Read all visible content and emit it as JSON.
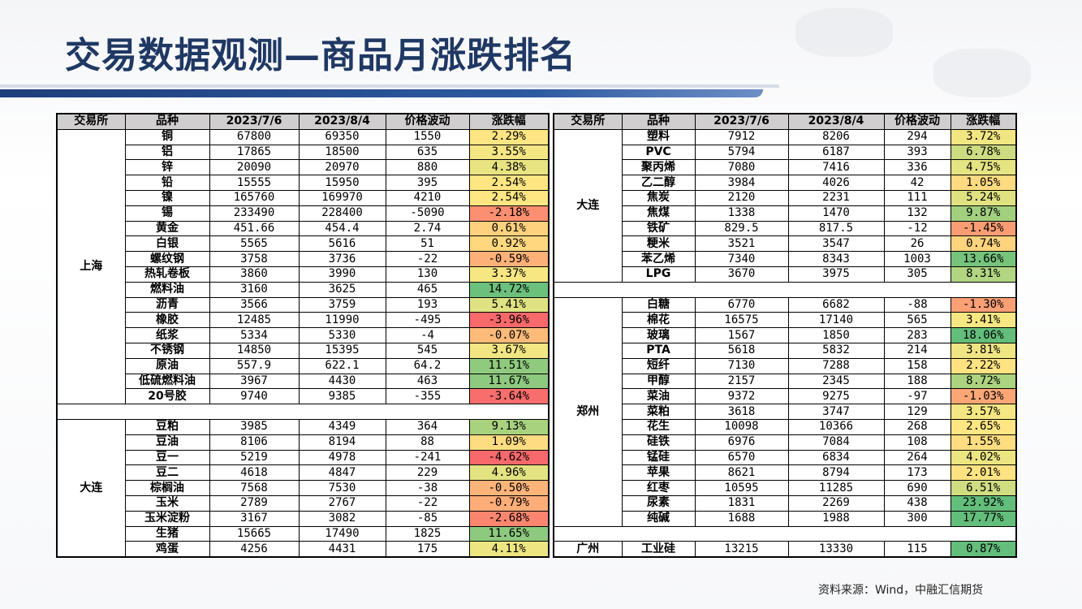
{
  "title": "交易数据观测—商品月涨跌排名",
  "headers": [
    "交易所",
    "品种",
    "2023/7/6",
    "2023/8/4",
    "价格波动",
    "涨跌幅"
  ],
  "source": "资料来源：Wind，中融汇信期货",
  "colors": {
    "green": "#63be7b",
    "green_light": "#b5d77f",
    "yellow_green": "#d8e081",
    "yellow": "#ffeb84",
    "orange": "#fdbf7a",
    "red": "#f8696b",
    "header_bg": "#d0cece",
    "title": "#1f3864"
  },
  "left_table": [
    {
      "exchange": "上海",
      "rows": [
        {
          "item": "铜",
          "p1": "67800",
          "p2": "69350",
          "chg": "1550",
          "pct": "2.29%",
          "color": "#ffe583"
        },
        {
          "item": "铝",
          "p1": "17865",
          "p2": "18500",
          "chg": "635",
          "pct": "3.55%",
          "color": "#f4e683"
        },
        {
          "item": "锌",
          "p1": "20090",
          "p2": "20970",
          "chg": "880",
          "pct": "4.38%",
          "color": "#e9e482"
        },
        {
          "item": "铅",
          "p1": "15555",
          "p2": "15950",
          "chg": "395",
          "pct": "2.54%",
          "color": "#ffe683"
        },
        {
          "item": "镍",
          "p1": "165760",
          "p2": "169970",
          "chg": "4210",
          "pct": "2.54%",
          "color": "#ffe683"
        },
        {
          "item": "锡",
          "p1": "233490",
          "p2": "228400",
          "chg": "-5090",
          "pct": "-2.18%",
          "color": "#fb8f71"
        },
        {
          "item": "黄金",
          "p1": "451.66",
          "p2": "454.4",
          "chg": "2.74",
          "pct": "0.61%",
          "color": "#fed17e"
        },
        {
          "item": "白银",
          "p1": "5565",
          "p2": "5616",
          "chg": "51",
          "pct": "0.92%",
          "color": "#fed77f"
        },
        {
          "item": "螺纹钢",
          "p1": "3758",
          "p2": "3736",
          "chg": "-22",
          "pct": "-0.59%",
          "color": "#fdb178"
        },
        {
          "item": "热轧卷板",
          "p1": "3860",
          "p2": "3990",
          "chg": "130",
          "pct": "3.37%",
          "color": "#f7e783"
        },
        {
          "item": "燃料油",
          "p1": "3160",
          "p2": "3625",
          "chg": "465",
          "pct": "14.72%",
          "color": "#6bc07c"
        },
        {
          "item": "沥青",
          "p1": "3566",
          "p2": "3759",
          "chg": "193",
          "pct": "5.41%",
          "color": "#dfe282"
        },
        {
          "item": "橡胶",
          "p1": "12485",
          "p2": "11990",
          "chg": "-495",
          "pct": "-3.96%",
          "color": "#f8696b"
        },
        {
          "item": "纸浆",
          "p1": "5334",
          "p2": "5330",
          "chg": "-4",
          "pct": "-0.07%",
          "color": "#fdbb7a"
        },
        {
          "item": "不锈钢",
          "p1": "14850",
          "p2": "15395",
          "chg": "545",
          "pct": "3.67%",
          "color": "#f2e683"
        },
        {
          "item": "原油",
          "p1": "557.9",
          "p2": "622.1",
          "chg": "64.2",
          "pct": "11.51%",
          "color": "#8fca7e"
        },
        {
          "item": "低硫燃料油",
          "p1": "3967",
          "p2": "4430",
          "chg": "463",
          "pct": "11.67%",
          "color": "#8dc97e"
        },
        {
          "item": "20号胶",
          "p1": "9740",
          "p2": "9385",
          "chg": "-355",
          "pct": "-3.64%",
          "color": "#f86e6c"
        }
      ]
    },
    {
      "exchange": "大连",
      "rows": [
        {
          "item": "豆粕",
          "p1": "3985",
          "p2": "4349",
          "chg": "364",
          "pct": "9.13%",
          "color": "#a9d27f"
        },
        {
          "item": "豆油",
          "p1": "8106",
          "p2": "8194",
          "chg": "88",
          "pct": "1.09%",
          "color": "#fedc81"
        },
        {
          "item": "豆一",
          "p1": "5219",
          "p2": "4978",
          "chg": "-241",
          "pct": "-4.62%",
          "color": "#f8696b"
        },
        {
          "item": "豆二",
          "p1": "4618",
          "p2": "4847",
          "chg": "229",
          "pct": "4.96%",
          "color": "#e3e382"
        },
        {
          "item": "棕榈油",
          "p1": "7568",
          "p2": "7530",
          "chg": "-38",
          "pct": "-0.50%",
          "color": "#fdb479"
        },
        {
          "item": "玉米",
          "p1": "2789",
          "p2": "2767",
          "chg": "-22",
          "pct": "-0.79%",
          "color": "#fdad78"
        },
        {
          "item": "玉米淀粉",
          "p1": "3167",
          "p2": "3082",
          "chg": "-85",
          "pct": "-2.68%",
          "color": "#fa8670"
        },
        {
          "item": "生猪",
          "p1": "15665",
          "p2": "17490",
          "chg": "1825",
          "pct": "11.65%",
          "color": "#8dc97e"
        },
        {
          "item": "鸡蛋",
          "p1": "4256",
          "p2": "4431",
          "chg": "175",
          "pct": "4.11%",
          "color": "#ece582"
        }
      ]
    }
  ],
  "right_table": [
    {
      "exchange": "大连",
      "rows": [
        {
          "item": "塑料",
          "p1": "7912",
          "p2": "8206",
          "chg": "294",
          "pct": "3.72%",
          "color": "#f2e683"
        },
        {
          "item": "PVC",
          "p1": "5794",
          "p2": "6187",
          "chg": "393",
          "pct": "6.78%",
          "color": "#cddc81"
        },
        {
          "item": "聚丙烯",
          "p1": "7080",
          "p2": "7416",
          "chg": "336",
          "pct": "4.75%",
          "color": "#e5e482"
        },
        {
          "item": "乙二醇",
          "p1": "3984",
          "p2": "4026",
          "chg": "42",
          "pct": "1.05%",
          "color": "#feda80"
        },
        {
          "item": "焦炭",
          "p1": "2120",
          "p2": "2231",
          "chg": "111",
          "pct": "5.24%",
          "color": "#e0e282"
        },
        {
          "item": "焦煤",
          "p1": "1338",
          "p2": "1470",
          "chg": "132",
          "pct": "9.87%",
          "color": "#a2d07f"
        },
        {
          "item": "铁矿",
          "p1": "829.5",
          "p2": "817.5",
          "chg": "-12",
          "pct": "-1.45%",
          "color": "#fb9d74"
        },
        {
          "item": "粳米",
          "p1": "3521",
          "p2": "3547",
          "chg": "26",
          "pct": "0.74%",
          "color": "#fed37e"
        },
        {
          "item": "苯乙烯",
          "p1": "7340",
          "p2": "8343",
          "chg": "1003",
          "pct": "13.66%",
          "color": "#76c37c"
        },
        {
          "item": "LPG",
          "p1": "3670",
          "p2": "3975",
          "chg": "305",
          "pct": "8.31%",
          "color": "#b1d580"
        }
      ]
    },
    {
      "exchange": "郑州",
      "rows": [
        {
          "item": "白糖",
          "p1": "6770",
          "p2": "6682",
          "chg": "-88",
          "pct": "-1.30%",
          "color": "#fb9f75"
        },
        {
          "item": "棉花",
          "p1": "16575",
          "p2": "17140",
          "chg": "565",
          "pct": "3.41%",
          "color": "#f6e783"
        },
        {
          "item": "玻璃",
          "p1": "1567",
          "p2": "1850",
          "chg": "283",
          "pct": "18.06%",
          "color": "#63be7b"
        },
        {
          "item": "PTA",
          "p1": "5618",
          "p2": "5832",
          "chg": "214",
          "pct": "3.81%",
          "color": "#f0e583"
        },
        {
          "item": "短纤",
          "p1": "7130",
          "p2": "7288",
          "chg": "158",
          "pct": "2.22%",
          "color": "#ffe382"
        },
        {
          "item": "甲醇",
          "p1": "2157",
          "p2": "2345",
          "chg": "188",
          "pct": "8.72%",
          "color": "#acd37f"
        },
        {
          "item": "菜油",
          "p1": "9372",
          "p2": "9275",
          "chg": "-97",
          "pct": "-1.03%",
          "color": "#fca676"
        },
        {
          "item": "菜粕",
          "p1": "3618",
          "p2": "3747",
          "chg": "129",
          "pct": "3.57%",
          "color": "#f4e683"
        },
        {
          "item": "花生",
          "p1": "10098",
          "p2": "10366",
          "chg": "268",
          "pct": "2.65%",
          "color": "#ffe683"
        },
        {
          "item": "硅铁",
          "p1": "6976",
          "p2": "7084",
          "chg": "108",
          "pct": "1.55%",
          "color": "#fedd81"
        },
        {
          "item": "锰硅",
          "p1": "6570",
          "p2": "6834",
          "chg": "264",
          "pct": "4.02%",
          "color": "#ede582"
        },
        {
          "item": "苹果",
          "p1": "8621",
          "p2": "8794",
          "chg": "173",
          "pct": "2.01%",
          "color": "#ffe382"
        },
        {
          "item": "红枣",
          "p1": "10595",
          "p2": "11285",
          "chg": "690",
          "pct": "6.51%",
          "color": "#d0dd81"
        },
        {
          "item": "尿素",
          "p1": "1831",
          "p2": "2269",
          "chg": "438",
          "pct": "23.92%",
          "color": "#63be7b"
        },
        {
          "item": "纯碱",
          "p1": "1688",
          "p2": "1988",
          "chg": "300",
          "pct": "17.77%",
          "color": "#63be7b"
        }
      ]
    },
    {
      "exchange": "广州",
      "rows": [
        {
          "item": "工业硅",
          "p1": "13215",
          "p2": "13330",
          "chg": "115",
          "pct": "0.87%",
          "color": "#63be7b"
        }
      ]
    }
  ]
}
